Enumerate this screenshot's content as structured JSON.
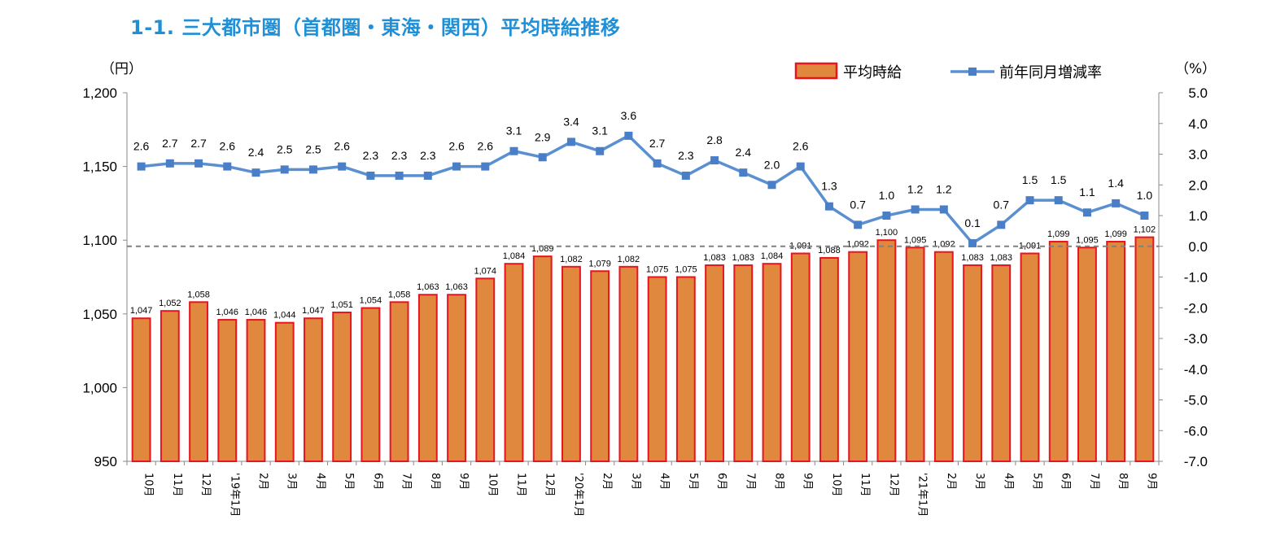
{
  "title": "1-1. 三大都市圏（首都圏・東海・関西）平均時給推移",
  "colors": {
    "title": "#1f8fd6",
    "bar_fill": "#e0883e",
    "bar_edge": "#e8141e",
    "line": "#5a8fd1",
    "marker": "#4a7fc8",
    "zero_line": "#808080"
  },
  "chart_data": {
    "type": "bar",
    "title": "1-1. 三大都市圏（首都圏・東海・関西）平均時給推移",
    "categories": [
      "10月",
      "11月",
      "12月",
      "'19年1月",
      "2月",
      "3月",
      "4月",
      "5月",
      "6月",
      "7月",
      "8月",
      "9月",
      "10月",
      "11月",
      "12月",
      "'20年1月",
      "2月",
      "3月",
      "4月",
      "5月",
      "6月",
      "7月",
      "8月",
      "9月",
      "10月",
      "11月",
      "12月",
      "'21年1月",
      "2月",
      "3月",
      "4月",
      "5月",
      "6月",
      "7月",
      "8月",
      "9月"
    ],
    "series": [
      {
        "name": "平均時給",
        "type": "bar",
        "axis": "left",
        "values": [
          1047,
          1052,
          1058,
          1046,
          1046,
          1044,
          1047,
          1051,
          1054,
          1058,
          1063,
          1063,
          1074,
          1084,
          1089,
          1082,
          1079,
          1082,
          1075,
          1075,
          1083,
          1083,
          1084,
          1091,
          1088,
          1092,
          1100,
          1095,
          1092,
          1083,
          1083,
          1091,
          1099,
          1095,
          1099,
          1102
        ],
        "labels": [
          "1,047",
          "1,052",
          "1,058",
          "1,046",
          "1,046",
          "1,044",
          "1,047",
          "1,051",
          "1,054",
          "1,058",
          "1,063",
          "1,063",
          "1,074",
          "1,084",
          "1,089",
          "1,082",
          "1,079",
          "1,082",
          "1,075",
          "1,075",
          "1,083",
          "1,083",
          "1,084",
          "1,091",
          "1,088",
          "1,092",
          "1,100",
          "1,095",
          "1,092",
          "1,083",
          "1,083",
          "1,091",
          "1,099",
          "1,095",
          "1,099",
          "1,102"
        ]
      },
      {
        "name": "前年同月増減率",
        "type": "line",
        "axis": "right",
        "values": [
          2.6,
          2.7,
          2.7,
          2.6,
          2.4,
          2.5,
          2.5,
          2.6,
          2.3,
          2.3,
          2.3,
          2.6,
          2.6,
          3.1,
          2.9,
          3.4,
          3.1,
          3.6,
          2.7,
          2.3,
          2.8,
          2.4,
          2.0,
          2.6,
          1.3,
          0.7,
          1.0,
          1.2,
          1.2,
          0.1,
          0.7,
          1.5,
          1.5,
          1.1,
          1.4,
          1.0
        ],
        "labels": [
          "2.6",
          "2.7",
          "2.7",
          "2.6",
          "2.4",
          "2.5",
          "2.5",
          "2.6",
          "2.3",
          "2.3",
          "2.3",
          "2.6",
          "2.6",
          "3.1",
          "2.9",
          "3.4",
          "3.1",
          "3.6",
          "2.7",
          "2.3",
          "2.8",
          "2.4",
          "2.0",
          "2.6",
          "1.3",
          "0.7",
          "1.0",
          "1.2",
          "1.2",
          "0.1",
          "0.7",
          "1.5",
          "1.5",
          "1.1",
          "1.4",
          "1.0"
        ]
      }
    ],
    "y_left": {
      "label": "（円）",
      "ylim": [
        950,
        1200
      ],
      "ticks": [
        "950",
        "1,000",
        "1,050",
        "1,100",
        "1,150",
        "1,200"
      ]
    },
    "y_right": {
      "label": "（%）",
      "ylim": [
        -7.0,
        5.0
      ],
      "ticks": [
        "-7.0",
        "-6.0",
        "-5.0",
        "-4.0",
        "-3.0",
        "-2.0",
        "-1.0",
        "0.0",
        "1.0",
        "2.0",
        "3.0",
        "4.0",
        "5.0"
      ]
    },
    "grid": false,
    "zero_reference_line": "dashed",
    "legend_position": "top-right"
  }
}
